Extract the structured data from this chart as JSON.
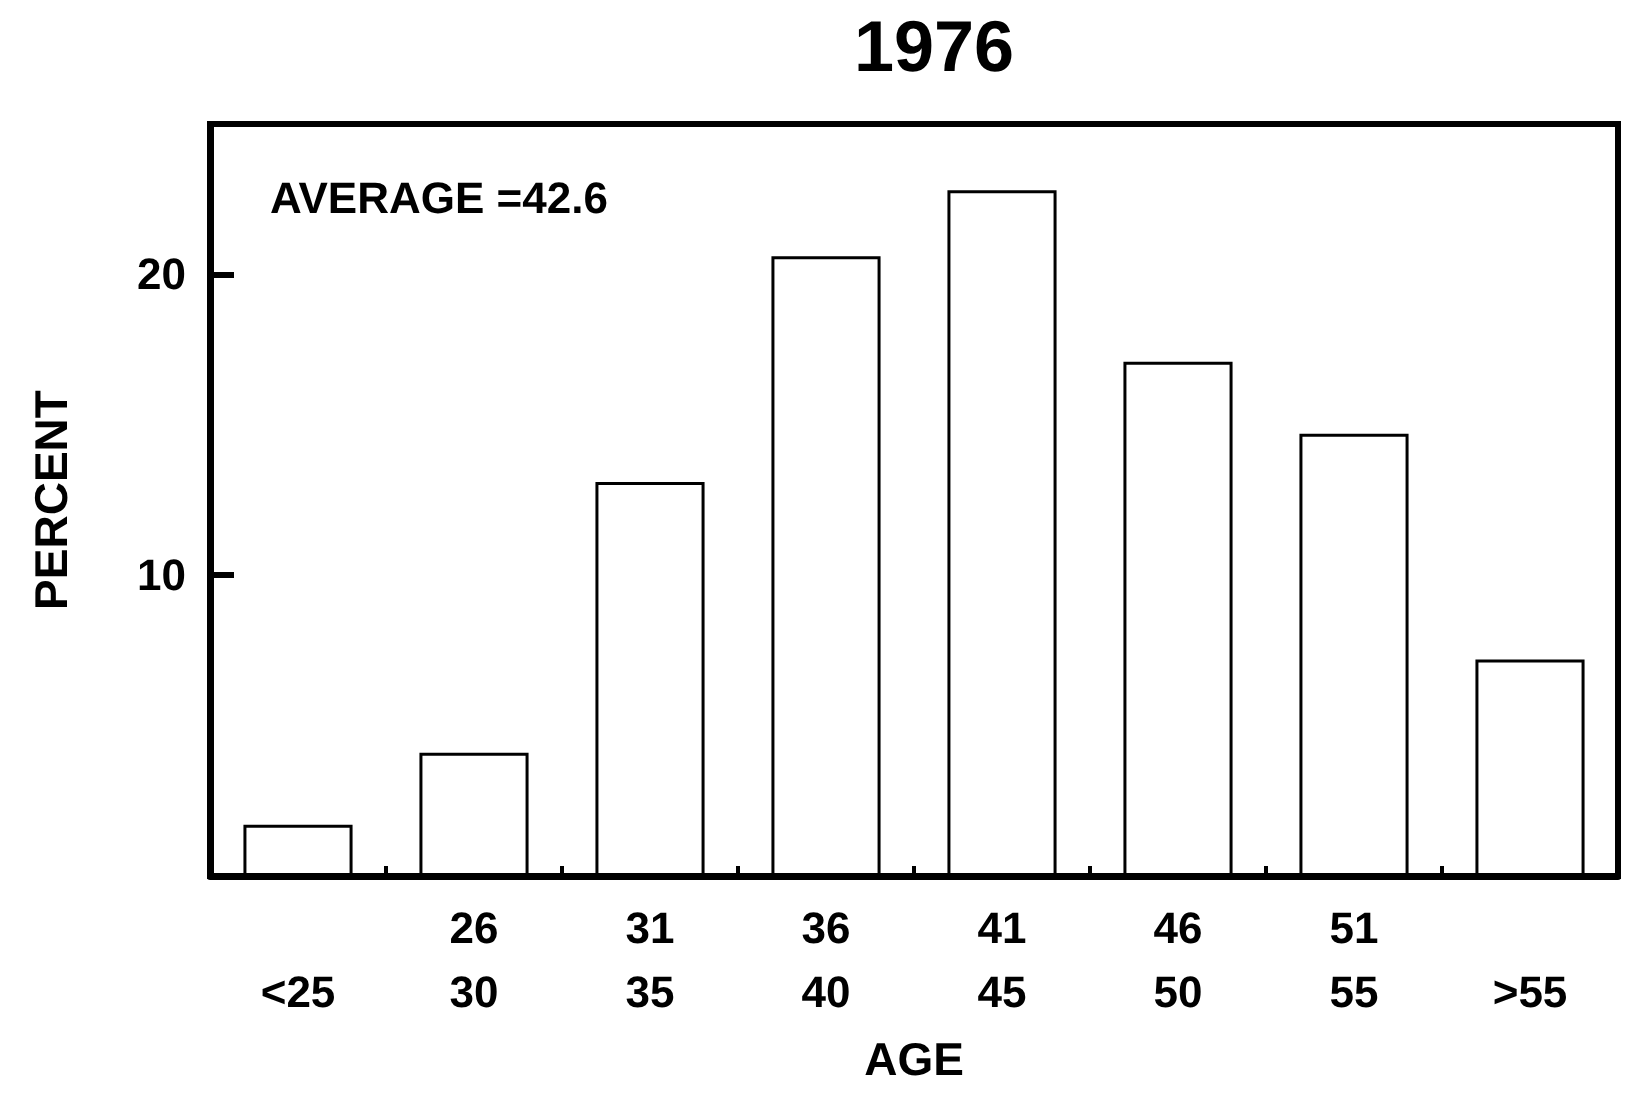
{
  "chart_data": {
    "type": "bar",
    "title": "1976",
    "xlabel": "AGE",
    "ylabel": "PERCENT",
    "categories": [
      "<25",
      "26\n30",
      "31\n35",
      "36\n40",
      "41\n45",
      "46\n50",
      "51\n55",
      ">55"
    ],
    "values": [
      1.7,
      4.1,
      13.1,
      20.6,
      22.8,
      17.1,
      14.7,
      7.2
    ],
    "color": "#ffffff",
    "ylim": [
      0,
      25
    ],
    "yticks": [
      10,
      20
    ],
    "grid": false,
    "annotations": [
      "AVERAGE =42.6"
    ]
  }
}
